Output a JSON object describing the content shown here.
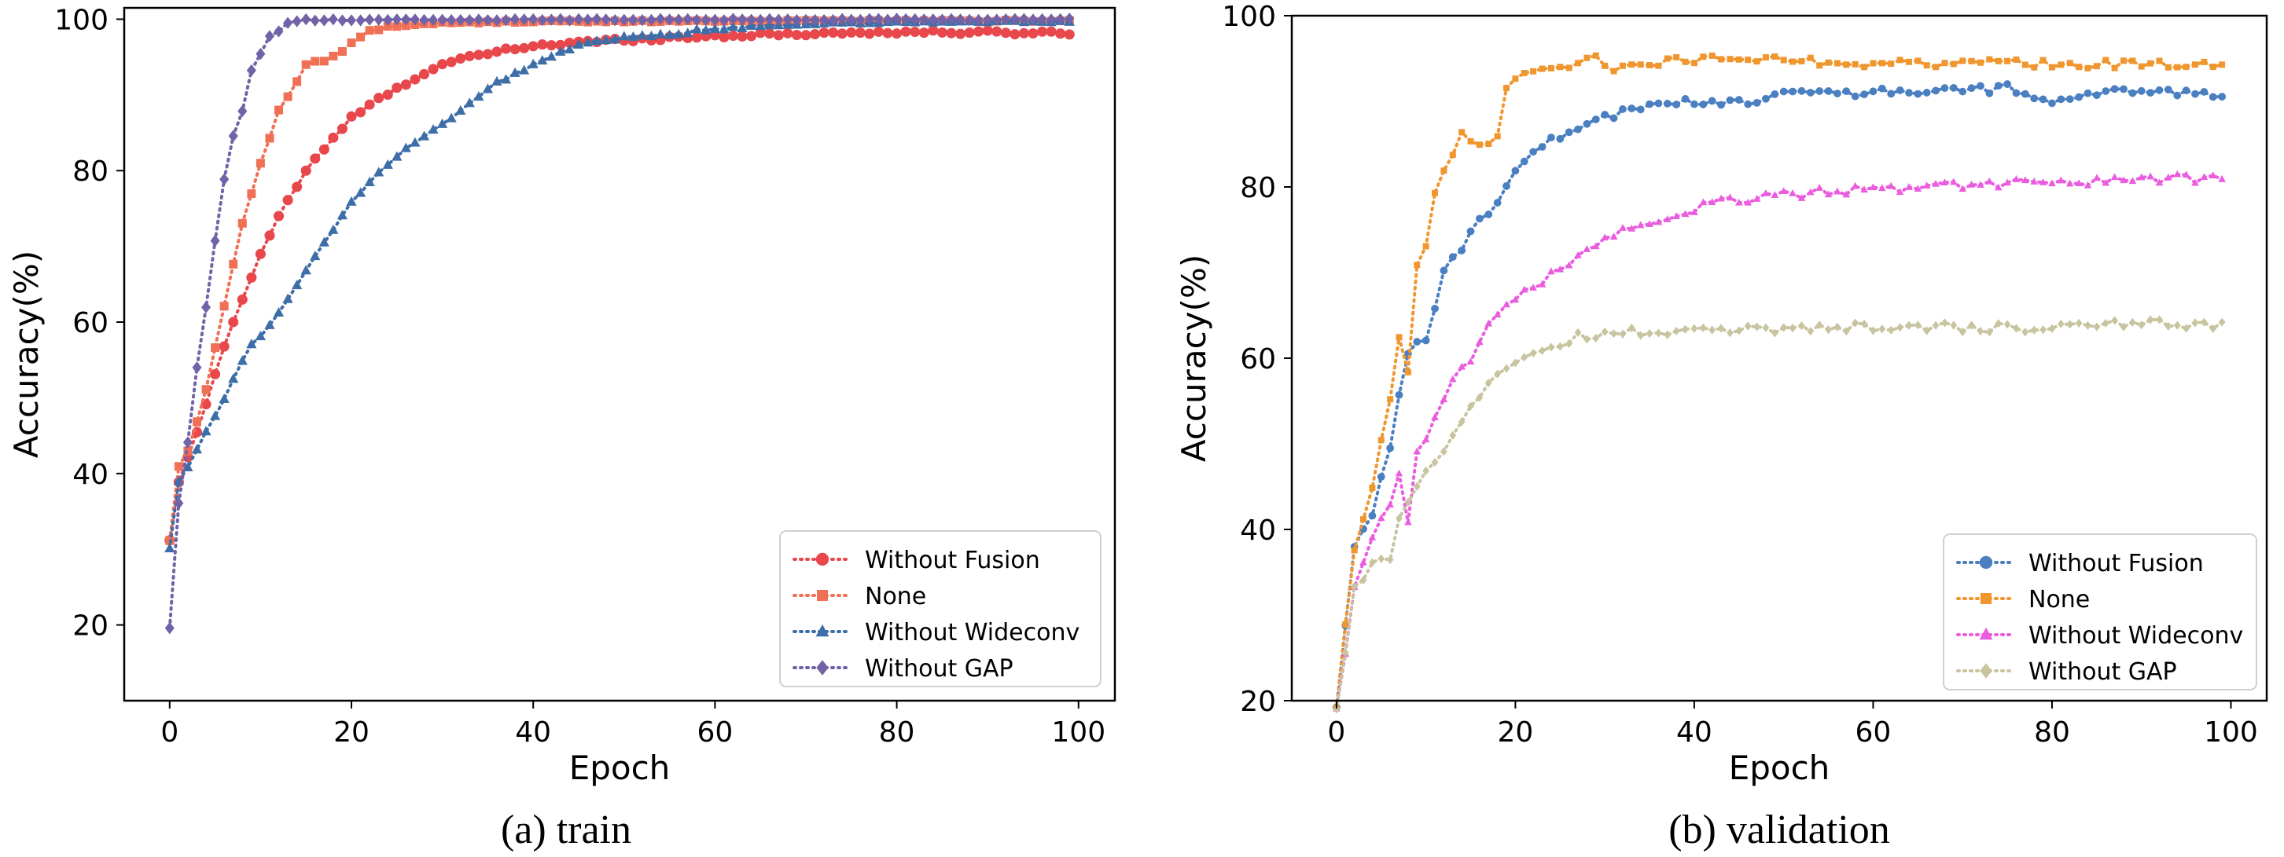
{
  "chart_data": [
    {
      "type": "line",
      "caption": "(a) train",
      "xlabel": "Epoch",
      "ylabel": "Accuracy(%)",
      "xlim": [
        -5,
        104
      ],
      "ylim": [
        10,
        101.5
      ],
      "xticks": [
        0,
        20,
        40,
        60,
        80,
        100
      ],
      "yticks": [
        20,
        40,
        60,
        80,
        100
      ],
      "xtick_labels": [
        "0",
        "20",
        "40",
        "60",
        "80",
        "100"
      ],
      "ytick_labels": [
        "20",
        "40",
        "60",
        "80",
        "100"
      ],
      "legend_position": "lower-right",
      "series": [
        {
          "name": "Without Fusion",
          "color": "#e8474c",
          "marker": "circle",
          "anchors": [
            [
              0,
              31
            ],
            [
              1,
              39
            ],
            [
              2,
              42
            ],
            [
              4,
              49
            ],
            [
              6,
              57
            ],
            [
              8,
              63
            ],
            [
              10,
              69
            ],
            [
              12,
              74
            ],
            [
              15,
              80
            ],
            [
              20,
              87
            ],
            [
              25,
              91
            ],
            [
              30,
              94
            ],
            [
              35,
              95.5
            ],
            [
              40,
              96.5
            ],
            [
              50,
              97.3
            ],
            [
              60,
              97.8
            ],
            [
              70,
              98.1
            ],
            [
              80,
              98.3
            ],
            [
              99,
              98.2
            ]
          ]
        },
        {
          "name": "None",
          "color": "#f07055",
          "marker": "square",
          "anchors": [
            [
              0,
              31
            ],
            [
              1,
              41
            ],
            [
              2,
              43
            ],
            [
              4,
              51
            ],
            [
              6,
              62
            ],
            [
              8,
              73
            ],
            [
              10,
              81
            ],
            [
              12,
              88
            ],
            [
              15,
              94
            ],
            [
              18,
              95
            ],
            [
              22,
              98.5
            ],
            [
              26,
              99.2
            ],
            [
              30,
              99.5
            ],
            [
              40,
              99.7
            ],
            [
              99,
              99.8
            ]
          ]
        },
        {
          "name": "Without Wideconv",
          "color": "#3e6ea8",
          "marker": "triangle",
          "anchors": [
            [
              0,
              30
            ],
            [
              1,
              39
            ],
            [
              3,
              43
            ],
            [
              6,
              50
            ],
            [
              9,
              57
            ],
            [
              12,
              61
            ],
            [
              15,
              67
            ],
            [
              20,
              76
            ],
            [
              25,
              82
            ],
            [
              30,
              86
            ],
            [
              35,
              91
            ],
            [
              40,
              94
            ],
            [
              45,
              96.5
            ],
            [
              50,
              97.5
            ],
            [
              55,
              98
            ],
            [
              60,
              98.8
            ],
            [
              70,
              99.4
            ],
            [
              80,
              99.6
            ],
            [
              99,
              99.7
            ]
          ]
        },
        {
          "name": "Without GAP",
          "color": "#7263a8",
          "marker": "diamond",
          "anchors": [
            [
              0,
              19.5
            ],
            [
              1,
              36
            ],
            [
              2,
              44
            ],
            [
              3,
              54
            ],
            [
              4,
              62
            ],
            [
              5,
              70.5
            ],
            [
              6,
              79
            ],
            [
              7,
              84.5
            ],
            [
              8,
              88
            ],
            [
              9,
              93
            ],
            [
              10,
              95.5
            ],
            [
              11,
              98
            ],
            [
              12,
              98.5
            ],
            [
              13,
              99.5
            ],
            [
              15,
              99.9
            ],
            [
              99,
              100
            ]
          ]
        }
      ]
    },
    {
      "type": "line",
      "caption": "(b) validation",
      "xlabel": "Epoch",
      "ylabel": "Accuracy(%)",
      "xlim": [
        -5,
        104
      ],
      "ylim": [
        20,
        100
      ],
      "xticks": [
        0,
        20,
        40,
        60,
        80,
        100
      ],
      "yticks": [
        20,
        40,
        60,
        80,
        100
      ],
      "xtick_labels": [
        "0",
        "20",
        "40",
        "60",
        "80",
        "100"
      ],
      "ytick_labels": [
        "20",
        "40",
        "60",
        "80",
        "100"
      ],
      "legend_position": "lower-right",
      "series": [
        {
          "name": "Without Fusion",
          "color": "#4a7fc1",
          "marker": "circle",
          "anchors": [
            [
              0,
              19
            ],
            [
              2,
              38
            ],
            [
              4,
              42
            ],
            [
              6,
              50
            ],
            [
              8,
              61
            ],
            [
              10,
              62
            ],
            [
              12,
              70
            ],
            [
              14,
              73
            ],
            [
              16,
              76
            ],
            [
              18,
              78
            ],
            [
              20,
              82
            ],
            [
              22,
              84
            ],
            [
              25,
              86
            ],
            [
              30,
              88
            ],
            [
              35,
              89.5
            ],
            [
              40,
              90
            ],
            [
              45,
              90
            ],
            [
              50,
              90.8
            ],
            [
              55,
              91
            ],
            [
              60,
              91
            ],
            [
              65,
              91.2
            ],
            [
              70,
              91.3
            ],
            [
              75,
              91.5
            ],
            [
              80,
              90
            ],
            [
              85,
              91
            ],
            [
              90,
              91
            ],
            [
              95,
              91
            ],
            [
              99,
              91
            ]
          ]
        },
        {
          "name": "None",
          "color": "#f0962e",
          "marker": "square",
          "anchors": [
            [
              0,
              19
            ],
            [
              2,
              38
            ],
            [
              4,
              45
            ],
            [
              6,
              55
            ],
            [
              7,
              62
            ],
            [
              8,
              58
            ],
            [
              9,
              71
            ],
            [
              10,
              73
            ],
            [
              11,
              79
            ],
            [
              12,
              82
            ],
            [
              14,
              86
            ],
            [
              16,
              84.5
            ],
            [
              18,
              86
            ],
            [
              19,
              92
            ],
            [
              22,
              93.5
            ],
            [
              25,
              94
            ],
            [
              29,
              95
            ],
            [
              31,
              94
            ],
            [
              35,
              94.5
            ],
            [
              40,
              95
            ],
            [
              50,
              94.8
            ],
            [
              60,
              94.5
            ],
            [
              64,
              95
            ],
            [
              65,
              94.2
            ],
            [
              70,
              94.5
            ],
            [
              80,
              94.3
            ],
            [
              90,
              94.3
            ],
            [
              99,
              94
            ]
          ]
        },
        {
          "name": "Without Wideconv",
          "color": "#ea5ddf",
          "marker": "triangle",
          "anchors": [
            [
              0,
              19
            ],
            [
              2,
              33
            ],
            [
              4,
              39
            ],
            [
              6,
              43
            ],
            [
              7,
              47
            ],
            [
              8,
              41
            ],
            [
              9,
              49
            ],
            [
              11,
              53
            ],
            [
              13,
              57
            ],
            [
              15,
              60
            ],
            [
              17,
              64
            ],
            [
              20,
              67
            ],
            [
              23,
              69
            ],
            [
              26,
              71
            ],
            [
              30,
              74
            ],
            [
              35,
              76
            ],
            [
              40,
              77.5
            ],
            [
              45,
              78.5
            ],
            [
              50,
              79
            ],
            [
              55,
              79.5
            ],
            [
              60,
              79.6
            ],
            [
              65,
              80
            ],
            [
              70,
              80.3
            ],
            [
              75,
              80.4
            ],
            [
              80,
              80.5
            ],
            [
              85,
              80.6
            ],
            [
              90,
              80.8
            ],
            [
              95,
              81
            ],
            [
              99,
              81
            ]
          ]
        },
        {
          "name": "Without GAP",
          "color": "#c9c4a0",
          "marker": "diamond",
          "anchors": [
            [
              0,
              19
            ],
            [
              2,
              33
            ],
            [
              4,
              36
            ],
            [
              6,
              37
            ],
            [
              7,
              41
            ],
            [
              9,
              45
            ],
            [
              11,
              48
            ],
            [
              13,
              51
            ],
            [
              15,
              54
            ],
            [
              17,
              57
            ],
            [
              19,
              59
            ],
            [
              21,
              60
            ],
            [
              24,
              61
            ],
            [
              27,
              62.5
            ],
            [
              30,
              63
            ],
            [
              35,
              63.2
            ],
            [
              40,
              63.3
            ],
            [
              50,
              63.5
            ],
            [
              60,
              63.7
            ],
            [
              70,
              63.6
            ],
            [
              80,
              63.5
            ],
            [
              85,
              63.8
            ],
            [
              90,
              64
            ],
            [
              95,
              64
            ],
            [
              99,
              63.7
            ]
          ]
        }
      ]
    }
  ]
}
